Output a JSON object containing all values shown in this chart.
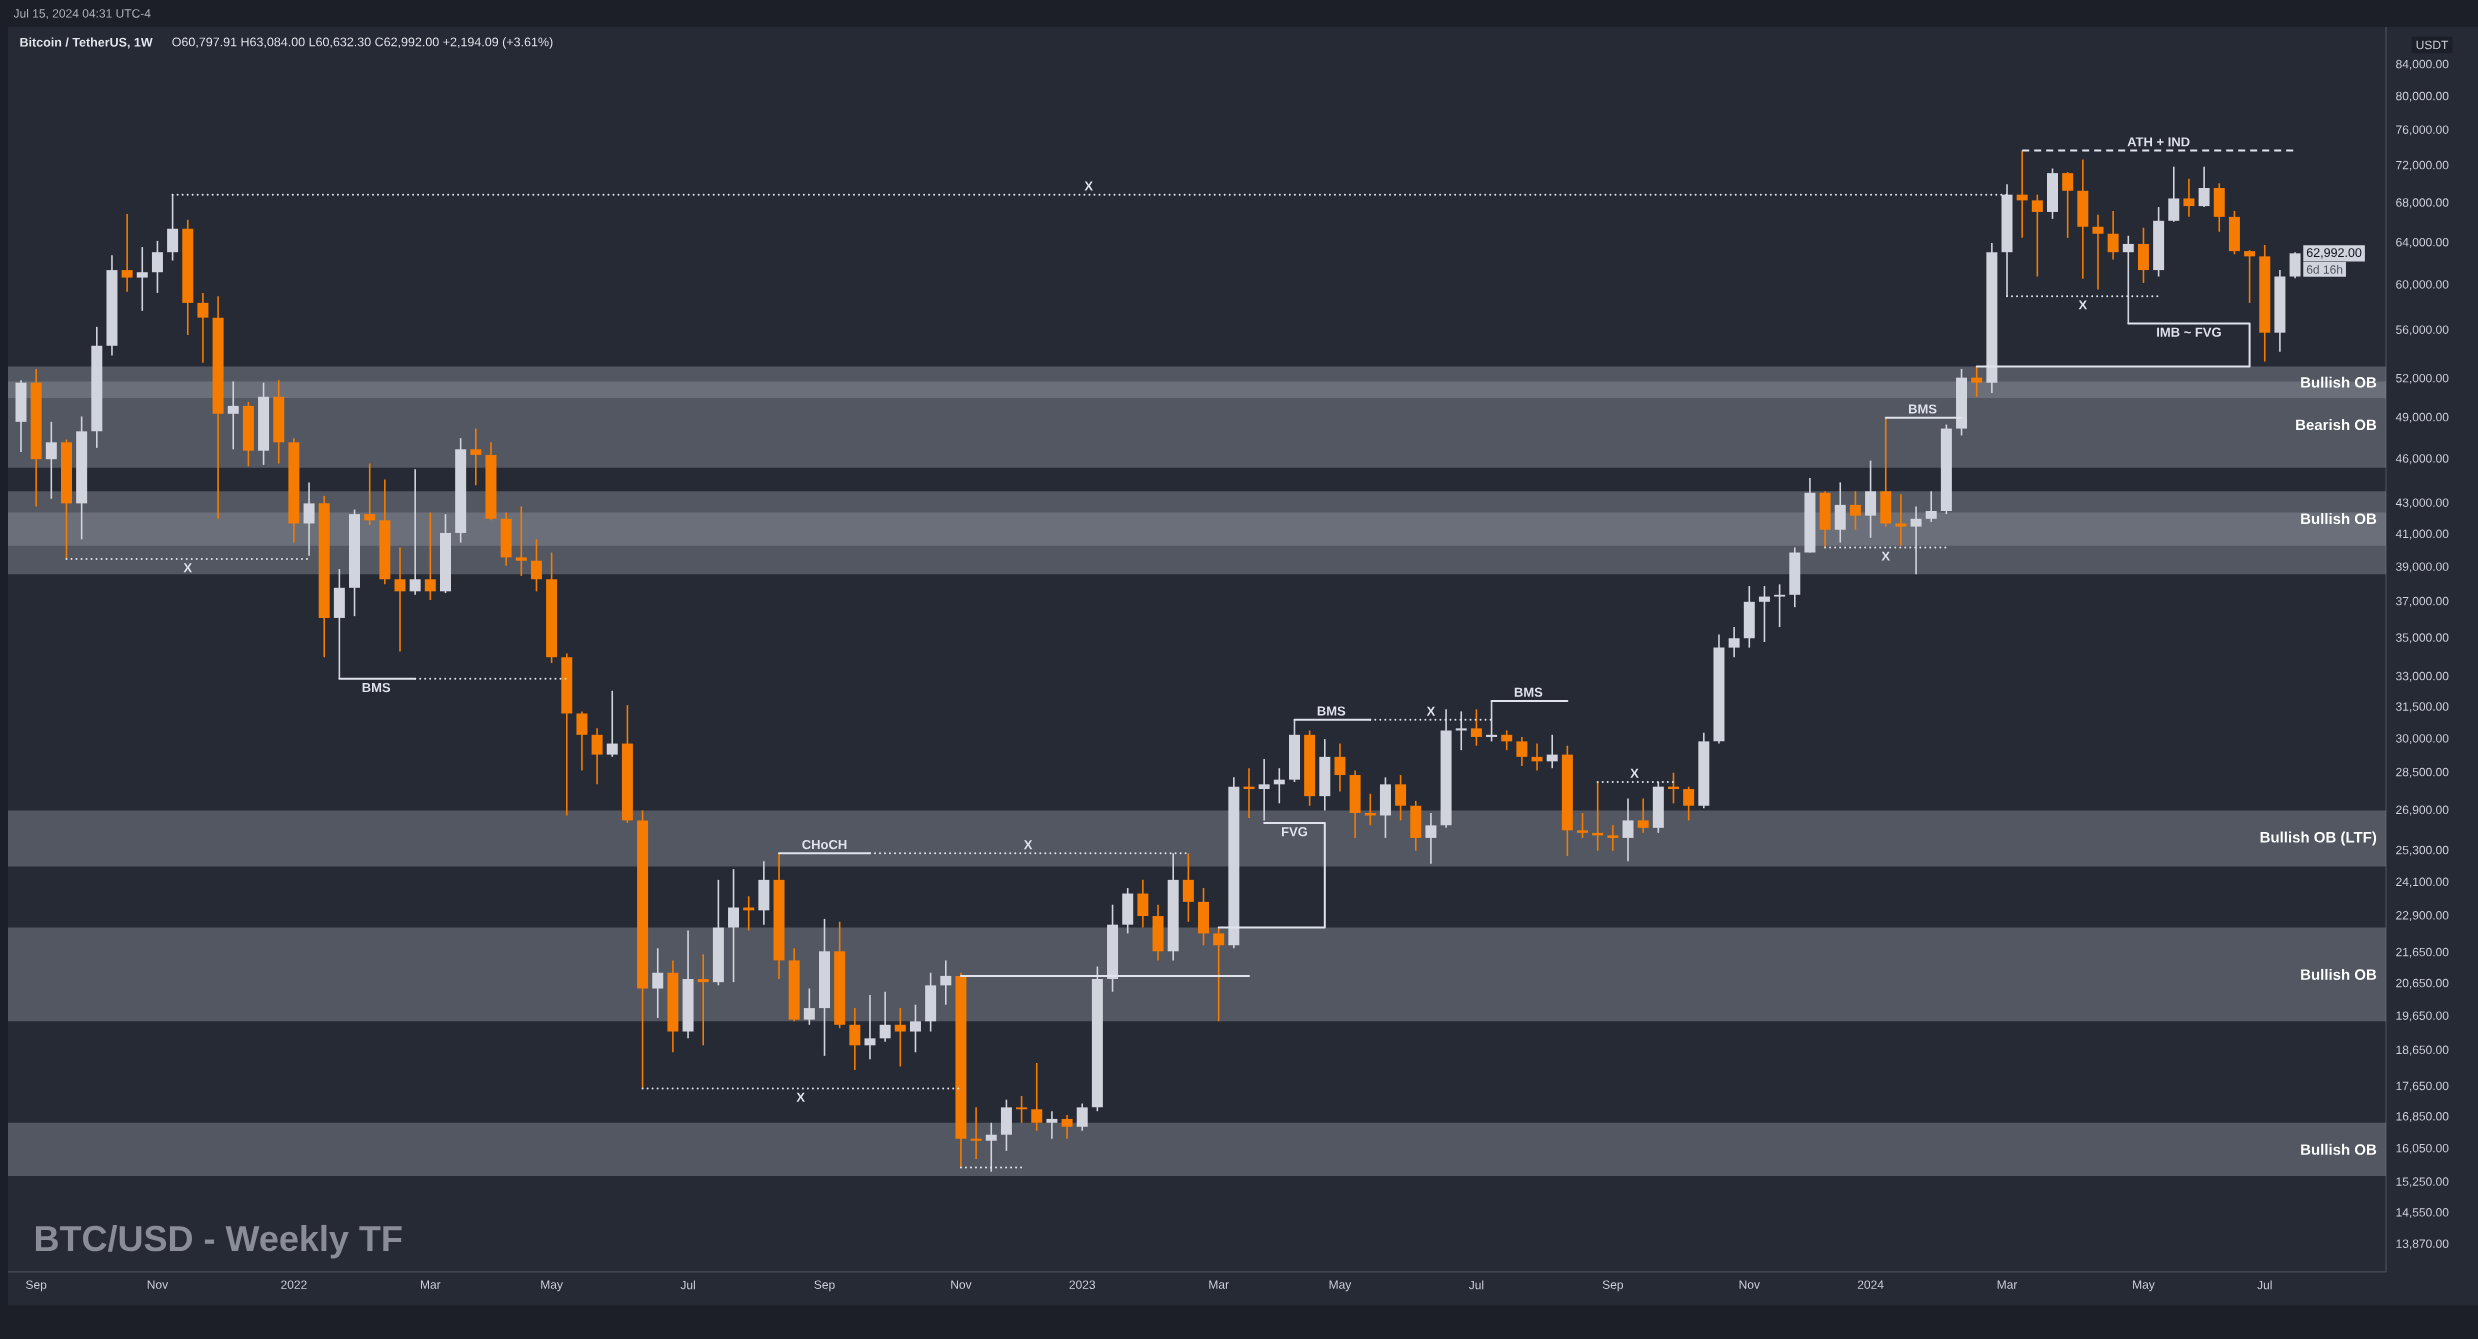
{
  "chart_data": {
    "type": "candlestick",
    "title": "Bitcoin / TetherUS, 1W",
    "subtitle": "O60,797.91 H63,084.00 L60,632.30 C62,992.00 +2,194.09 (+3.61%)",
    "ylabel": "USDT",
    "log": "y",
    "xlim": [
      "2021-08-24",
      "2024-08-26"
    ],
    "ylim": [
      13300,
      89000
    ],
    "xticks": [
      {
        "value": "2021-09-06",
        "label": "Sep"
      },
      {
        "value": "2021-11-01",
        "label": "Nov"
      },
      {
        "value": "2022-01-03",
        "label": "2022"
      },
      {
        "value": "2022-03-07",
        "label": "Mar"
      },
      {
        "value": "2022-05-02",
        "label": "May"
      },
      {
        "value": "2022-07-04",
        "label": "Jul"
      },
      {
        "value": "2022-09-05",
        "label": "Sep"
      },
      {
        "value": "2022-11-07",
        "label": "Nov"
      },
      {
        "value": "2023-01-02",
        "label": "2023"
      },
      {
        "value": "2023-03-06",
        "label": "Mar"
      },
      {
        "value": "2023-05-01",
        "label": "May"
      },
      {
        "value": "2023-07-03",
        "label": "Jul"
      },
      {
        "value": "2023-09-04",
        "label": "Sep"
      },
      {
        "value": "2023-11-06",
        "label": "Nov"
      },
      {
        "value": "2024-01-01",
        "label": "2024"
      },
      {
        "value": "2024-03-04",
        "label": "Mar"
      },
      {
        "value": "2024-05-06",
        "label": "May"
      },
      {
        "value": "2024-07-01",
        "label": "Jul"
      }
    ],
    "yticks": [
      {
        "value": 84000,
        "label": "84,000.00"
      },
      {
        "value": 80000,
        "label": "80,000.00"
      },
      {
        "value": 76000,
        "label": "76,000.00"
      },
      {
        "value": 72000,
        "label": "72,000.00"
      },
      {
        "value": 68000,
        "label": "68,000.00"
      },
      {
        "value": 64000,
        "label": "64,000.00"
      },
      {
        "value": 60000,
        "label": "60,000.00"
      },
      {
        "value": 56000,
        "label": "56,000.00"
      },
      {
        "value": 52000,
        "label": "52,000.00"
      },
      {
        "value": 49000,
        "label": "49,000.00"
      },
      {
        "value": 46000,
        "label": "46,000.00"
      },
      {
        "value": 43000,
        "label": "43,000.00"
      },
      {
        "value": 41000,
        "label": "41,000.00"
      },
      {
        "value": 39000,
        "label": "39,000.00"
      },
      {
        "value": 37000,
        "label": "37,000.00"
      },
      {
        "value": 35000,
        "label": "35,000.00"
      },
      {
        "value": 33000,
        "label": "33,000.00"
      },
      {
        "value": 31500,
        "label": "31,500.00"
      },
      {
        "value": 30000,
        "label": "30,000.00"
      },
      {
        "value": 28500,
        "label": "28,500.00"
      },
      {
        "value": 26900,
        "label": "26,900.00"
      },
      {
        "value": 25300,
        "label": "25,300.00"
      },
      {
        "value": 24100,
        "label": "24,100.00"
      },
      {
        "value": 22900,
        "label": "22,900.00"
      },
      {
        "value": 21650,
        "label": "21,650.00"
      },
      {
        "value": 20650,
        "label": "20,650.00"
      },
      {
        "value": 19650,
        "label": "19,650.00"
      },
      {
        "value": 18650,
        "label": "18,650.00"
      },
      {
        "value": 17650,
        "label": "17,650.00"
      },
      {
        "value": 16850,
        "label": "16,850.00"
      },
      {
        "value": 16050,
        "label": "16,050.00"
      },
      {
        "value": 15250,
        "label": "15,250.00"
      },
      {
        "value": 14550,
        "label": "14,550.00"
      },
      {
        "value": 13870,
        "label": "13,870.00"
      }
    ],
    "series": [
      {
        "x": [
          "2021-08-30",
          "2021-09-06",
          "2021-09-13",
          "2021-09-20",
          "2021-09-27",
          "2021-10-04",
          "2021-10-11",
          "2021-10-18",
          "2021-10-25",
          "2021-11-01",
          "2021-11-08",
          "2021-11-15",
          "2021-11-22",
          "2021-11-29",
          "2021-12-06",
          "2021-12-13",
          "2021-12-20",
          "2021-12-27",
          "2022-01-03",
          "2022-01-10",
          "2022-01-17",
          "2022-01-24",
          "2022-01-31",
          "2022-02-07",
          "2022-02-14",
          "2022-02-21",
          "2022-02-28",
          "2022-03-07",
          "2022-03-14",
          "2022-03-21",
          "2022-03-28",
          "2022-04-04",
          "2022-04-11",
          "2022-04-18",
          "2022-04-25",
          "2022-05-02",
          "2022-05-09",
          "2022-05-16",
          "2022-05-23",
          "2022-05-30",
          "2022-06-06",
          "2022-06-13",
          "2022-06-20",
          "2022-06-27",
          "2022-07-04",
          "2022-07-11",
          "2022-07-18",
          "2022-07-25",
          "2022-08-01",
          "2022-08-08",
          "2022-08-15",
          "2022-08-22",
          "2022-08-29",
          "2022-09-05",
          "2022-09-12",
          "2022-09-19",
          "2022-09-26",
          "2022-10-03",
          "2022-10-10",
          "2022-10-17",
          "2022-10-24",
          "2022-10-31",
          "2022-11-07",
          "2022-11-14",
          "2022-11-21",
          "2022-11-28",
          "2022-12-05",
          "2022-12-12",
          "2022-12-19",
          "2022-12-26",
          "2023-01-02",
          "2023-01-09",
          "2023-01-16",
          "2023-01-23",
          "2023-01-30",
          "2023-02-06",
          "2023-02-13",
          "2023-02-20",
          "2023-02-27",
          "2023-03-06",
          "2023-03-13",
          "2023-03-20",
          "2023-03-27",
          "2023-04-03",
          "2023-04-10",
          "2023-04-17",
          "2023-04-24",
          "2023-05-01",
          "2023-05-08",
          "2023-05-15",
          "2023-05-22",
          "2023-05-29",
          "2023-06-05",
          "2023-06-12",
          "2023-06-19",
          "2023-06-26",
          "2023-07-03",
          "2023-07-10",
          "2023-07-17",
          "2023-07-24",
          "2023-07-31",
          "2023-08-07",
          "2023-08-14",
          "2023-08-21",
          "2023-08-28",
          "2023-09-04",
          "2023-09-11",
          "2023-09-18",
          "2023-09-25",
          "2023-10-02",
          "2023-10-09",
          "2023-10-16",
          "2023-10-23",
          "2023-10-30",
          "2023-11-06",
          "2023-11-13",
          "2023-11-20",
          "2023-11-27",
          "2023-12-04",
          "2023-12-11",
          "2023-12-18",
          "2023-12-25",
          "2024-01-01",
          "2024-01-08",
          "2024-01-15",
          "2024-01-22",
          "2024-01-29",
          "2024-02-05",
          "2024-02-12",
          "2024-02-19",
          "2024-02-26",
          "2024-03-04",
          "2024-03-11",
          "2024-03-18",
          "2024-03-25",
          "2024-04-01",
          "2024-04-08",
          "2024-04-15",
          "2024-04-22",
          "2024-04-29",
          "2024-05-06",
          "2024-05-13",
          "2024-05-20",
          "2024-05-27",
          "2024-06-03",
          "2024-06-10",
          "2024-06-17",
          "2024-06-24",
          "2024-07-01",
          "2024-07-08",
          "2024-07-15"
        ],
        "ohlc": [
          [
            48700,
            51900,
            46500,
            51700
          ],
          [
            51700,
            52800,
            42800,
            46000
          ],
          [
            46000,
            48700,
            43300,
            47200
          ],
          [
            47200,
            47400,
            39500,
            43000
          ],
          [
            43000,
            49100,
            40700,
            48000
          ],
          [
            48000,
            56300,
            46800,
            54700
          ],
          [
            54700,
            62800,
            53900,
            61400
          ],
          [
            61400,
            66900,
            59400,
            60700
          ],
          [
            60700,
            63600,
            57700,
            61200
          ],
          [
            61200,
            64200,
            59300,
            63100
          ],
          [
            63100,
            68900,
            62300,
            65400
          ],
          [
            65400,
            66300,
            55600,
            58400
          ],
          [
            58400,
            59300,
            53300,
            57100
          ],
          [
            57100,
            59000,
            42000,
            49300
          ],
          [
            49300,
            51800,
            46700,
            49900
          ],
          [
            49900,
            50200,
            45500,
            46600
          ],
          [
            46600,
            51700,
            45600,
            50600
          ],
          [
            50600,
            51900,
            45700,
            47200
          ],
          [
            47200,
            47500,
            40500,
            41700
          ],
          [
            41700,
            44400,
            39700,
            43000
          ],
          [
            43000,
            43500,
            34000,
            36100
          ],
          [
            36100,
            38900,
            32900,
            37800
          ],
          [
            37800,
            42600,
            36200,
            42300
          ],
          [
            42300,
            45700,
            41600,
            41900
          ],
          [
            41900,
            44600,
            38000,
            38300
          ],
          [
            38300,
            40200,
            34300,
            37600
          ],
          [
            37600,
            45300,
            37400,
            38300
          ],
          [
            38300,
            42400,
            37100,
            37600
          ],
          [
            37600,
            42300,
            37500,
            41100
          ],
          [
            41100,
            47500,
            40500,
            46700
          ],
          [
            46700,
            48200,
            44200,
            46300
          ],
          [
            46300,
            47200,
            41900,
            42000
          ],
          [
            42000,
            42400,
            39100,
            39600
          ],
          [
            39600,
            42800,
            38500,
            39400
          ],
          [
            39400,
            40700,
            37600,
            38300
          ],
          [
            38300,
            39900,
            33700,
            34000
          ],
          [
            34000,
            34200,
            26700,
            31200
          ],
          [
            31200,
            31300,
            28600,
            30200
          ],
          [
            30200,
            30500,
            28000,
            29300
          ],
          [
            29300,
            32300,
            29200,
            29800
          ],
          [
            29800,
            31600,
            26400,
            26500
          ],
          [
            26500,
            26900,
            17600,
            20500
          ],
          [
            20500,
            21800,
            19600,
            21000
          ],
          [
            21000,
            21400,
            18600,
            19200
          ],
          [
            19200,
            22400,
            19000,
            20800
          ],
          [
            20800,
            21600,
            18800,
            20700
          ],
          [
            20700,
            24200,
            20600,
            22500
          ],
          [
            22500,
            24600,
            20700,
            23200
          ],
          [
            23200,
            23600,
            22400,
            23100
          ],
          [
            23100,
            24900,
            22600,
            24200
          ],
          [
            24200,
            25200,
            20800,
            21400
          ],
          [
            21400,
            21800,
            19500,
            19550
          ],
          [
            19550,
            20500,
            19400,
            19900
          ],
          [
            19900,
            22800,
            18500,
            21700
          ],
          [
            21700,
            22700,
            19300,
            19400
          ],
          [
            19400,
            19900,
            18100,
            18800
          ],
          [
            18800,
            20300,
            18400,
            19000
          ],
          [
            19000,
            20400,
            18900,
            19400
          ],
          [
            19400,
            19900,
            18200,
            19200
          ],
          [
            19200,
            20000,
            18600,
            19500
          ],
          [
            19500,
            21000,
            19200,
            20600
          ],
          [
            20600,
            21400,
            20000,
            20900
          ],
          [
            20900,
            21000,
            15600,
            16300
          ],
          [
            16300,
            17100,
            15800,
            16250
          ],
          [
            16250,
            16700,
            15500,
            16400
          ],
          [
            16400,
            17300,
            16000,
            17100
          ],
          [
            17100,
            17400,
            16700,
            17050
          ],
          [
            17050,
            18300,
            16500,
            16700
          ],
          [
            16700,
            17000,
            16300,
            16800
          ],
          [
            16800,
            16900,
            16300,
            16600
          ],
          [
            16600,
            17200,
            16500,
            17100
          ],
          [
            17100,
            21200,
            17000,
            20800
          ],
          [
            20800,
            23300,
            20400,
            22600
          ],
          [
            22600,
            23900,
            22300,
            23700
          ],
          [
            23700,
            24200,
            22500,
            22900
          ],
          [
            22900,
            23300,
            21400,
            21700
          ],
          [
            21700,
            25200,
            21400,
            24200
          ],
          [
            24200,
            25200,
            22700,
            23400
          ],
          [
            23400,
            23900,
            21900,
            22300
          ],
          [
            22300,
            22500,
            19500,
            21900
          ],
          [
            21900,
            28300,
            21800,
            27900
          ],
          [
            27900,
            28700,
            26600,
            27800
          ],
          [
            27800,
            29100,
            26500,
            28000
          ],
          [
            28000,
            28700,
            27200,
            28200
          ],
          [
            28200,
            30900,
            28100,
            30200
          ],
          [
            30200,
            30400,
            27100,
            27500
          ],
          [
            27500,
            30000,
            26900,
            29200
          ],
          [
            29200,
            29800,
            27700,
            28400
          ],
          [
            28400,
            28600,
            25800,
            26800
          ],
          [
            26800,
            27600,
            26300,
            26700
          ],
          [
            26700,
            28300,
            25800,
            28000
          ],
          [
            28000,
            28400,
            26500,
            27100
          ],
          [
            27100,
            27300,
            25300,
            25800
          ],
          [
            25800,
            26800,
            24800,
            26300
          ],
          [
            26300,
            31400,
            26200,
            30400
          ],
          [
            30400,
            31300,
            29500,
            30500
          ],
          [
            30500,
            31400,
            29700,
            30100
          ],
          [
            30100,
            31800,
            29900,
            30200
          ],
          [
            30200,
            30400,
            29500,
            29900
          ],
          [
            29900,
            30100,
            28800,
            29200
          ],
          [
            29200,
            29800,
            28600,
            29000
          ],
          [
            29000,
            30200,
            28700,
            29300
          ],
          [
            29300,
            29700,
            25100,
            26100
          ],
          [
            26100,
            26800,
            25800,
            26000
          ],
          [
            26000,
            28100,
            25300,
            25900
          ],
          [
            25900,
            26300,
            25300,
            25800
          ],
          [
            25800,
            27400,
            24900,
            26500
          ],
          [
            26500,
            27400,
            26000,
            26200
          ],
          [
            26200,
            28100,
            26000,
            27900
          ],
          [
            27900,
            28500,
            27200,
            27800
          ],
          [
            27800,
            27900,
            26500,
            27100
          ],
          [
            27100,
            30300,
            27000,
            29900
          ],
          [
            29900,
            35200,
            29800,
            34500
          ],
          [
            34500,
            35600,
            34000,
            35000
          ],
          [
            35000,
            37900,
            34500,
            37000
          ],
          [
            37000,
            37900,
            34800,
            37300
          ],
          [
            37300,
            38000,
            35600,
            37400
          ],
          [
            37400,
            40200,
            36700,
            39900
          ],
          [
            39900,
            44700,
            39900,
            43700
          ],
          [
            43700,
            43800,
            40200,
            41300
          ],
          [
            41300,
            44400,
            40500,
            42900
          ],
          [
            42900,
            43800,
            41300,
            42200
          ],
          [
            42200,
            45900,
            40800,
            43800
          ],
          [
            43800,
            49000,
            41500,
            41700
          ],
          [
            41700,
            43600,
            40300,
            41500
          ],
          [
            41500,
            42800,
            38600,
            42000
          ],
          [
            42000,
            43800,
            41800,
            42500
          ],
          [
            42500,
            48500,
            42300,
            48200
          ],
          [
            48200,
            52800,
            47700,
            52100
          ],
          [
            52100,
            53000,
            50600,
            51700
          ],
          [
            51700,
            64000,
            50900,
            63100
          ],
          [
            63100,
            70000,
            59000,
            68900
          ],
          [
            68900,
            73700,
            64500,
            68300
          ],
          [
            68300,
            68900,
            60800,
            67100
          ],
          [
            67100,
            71700,
            66400,
            71200
          ],
          [
            71200,
            71300,
            64500,
            69300
          ],
          [
            69300,
            72700,
            60600,
            65600
          ],
          [
            65600,
            66800,
            59600,
            64900
          ],
          [
            64900,
            67200,
            62400,
            63100
          ],
          [
            63100,
            64700,
            56600,
            63900
          ],
          [
            63900,
            65500,
            60200,
            61400
          ],
          [
            61400,
            67600,
            60800,
            66200
          ],
          [
            66200,
            71900,
            66100,
            68500
          ],
          [
            68500,
            70600,
            66600,
            67700
          ],
          [
            67700,
            71900,
            67600,
            69600
          ],
          [
            69600,
            70100,
            65100,
            66600
          ],
          [
            66600,
            67200,
            62900,
            63200
          ],
          [
            63200,
            63300,
            58400,
            62700
          ],
          [
            62700,
            63800,
            53400,
            55800
          ],
          [
            55800,
            61400,
            54200,
            60800
          ],
          [
            60797.91,
            63084.0,
            60632.3,
            62992.0
          ]
        ],
        "colors": [
          "#d1d4dc",
          "#f57c00",
          "#d1d4dc",
          "#f57c00",
          "#d1d4dc",
          "#d1d4dc",
          "#d1d4dc",
          "#f57c00",
          "#d1d4dc",
          "#d1d4dc",
          "#d1d4dc",
          "#f57c00",
          "#f57c00",
          "#f57c00",
          "#d1d4dc",
          "#f57c00",
          "#d1d4dc",
          "#f57c00",
          "#f57c00",
          "#d1d4dc",
          "#f57c00",
          "#d1d4dc",
          "#d1d4dc",
          "#f57c00",
          "#f57c00",
          "#f57c00",
          "#d1d4dc",
          "#f57c00",
          "#d1d4dc",
          "#d1d4dc",
          "#f57c00",
          "#f57c00",
          "#f57c00",
          "#f57c00",
          "#f57c00",
          "#f57c00",
          "#f57c00",
          "#f57c00",
          "#f57c00",
          "#d1d4dc",
          "#f57c00",
          "#f57c00",
          "#d1d4dc",
          "#f57c00",
          "#d1d4dc",
          "#f57c00",
          "#d1d4dc",
          "#d1d4dc",
          "#f57c00",
          "#d1d4dc",
          "#f57c00",
          "#f57c00",
          "#d1d4dc",
          "#d1d4dc",
          "#f57c00",
          "#f57c00",
          "#d1d4dc",
          "#d1d4dc",
          "#f57c00",
          "#d1d4dc",
          "#d1d4dc",
          "#d1d4dc",
          "#f57c00",
          "#f57c00",
          "#d1d4dc",
          "#d1d4dc",
          "#f57c00",
          "#f57c00",
          "#d1d4dc",
          "#f57c00",
          "#d1d4dc",
          "#d1d4dc",
          "#d1d4dc",
          "#d1d4dc",
          "#f57c00",
          "#f57c00",
          "#d1d4dc",
          "#f57c00",
          "#f57c00",
          "#f57c00",
          "#d1d4dc",
          "#f57c00",
          "#d1d4dc",
          "#d1d4dc",
          "#d1d4dc",
          "#f57c00",
          "#d1d4dc",
          "#f57c00",
          "#f57c00",
          "#f57c00",
          "#d1d4dc",
          "#f57c00",
          "#f57c00",
          "#d1d4dc",
          "#d1d4dc",
          "#d1d4dc",
          "#f57c00",
          "#d1d4dc",
          "#f57c00",
          "#f57c00",
          "#f57c00",
          "#d1d4dc",
          "#f57c00",
          "#f57c00",
          "#f57c00",
          "#f57c00",
          "#d1d4dc",
          "#f57c00",
          "#d1d4dc",
          "#f57c00",
          "#f57c00",
          "#d1d4dc",
          "#d1d4dc",
          "#d1d4dc",
          "#d1d4dc",
          "#d1d4dc",
          "#d1d4dc",
          "#d1d4dc",
          "#d1d4dc",
          "#f57c00",
          "#d1d4dc",
          "#f57c00",
          "#d1d4dc",
          "#f57c00",
          "#f57c00",
          "#d1d4dc",
          "#d1d4dc",
          "#d1d4dc",
          "#d1d4dc",
          "#f57c00",
          "#d1d4dc",
          "#d1d4dc",
          "#f57c00",
          "#f57c00",
          "#d1d4dc",
          "#f57c00",
          "#f57c00",
          "#f57c00",
          "#f57c00",
          "#d1d4dc",
          "#f57c00",
          "#d1d4dc",
          "#d1d4dc",
          "#f57c00",
          "#d1d4dc",
          "#f57c00",
          "#f57c00",
          "#f57c00",
          "#f57c00",
          "#d1d4dc",
          "#d1d4dc"
        ]
      },
      {
        "type": "line",
        "name": "X",
        "x": [
          "2021-11-08",
          "2024-03-04"
        ],
        "values": [
          68900,
          68900
        ],
        "color": "#e0e3eb",
        "line_style": "dotted"
      },
      {
        "type": "line",
        "name": "X",
        "x": [
          "2021-09-20",
          "2022-01-10"
        ],
        "values": [
          39500,
          39500
        ],
        "color": "#e0e3eb",
        "line_style": "dotted"
      },
      {
        "type": "line",
        "name": "BMS",
        "x": [
          "2022-01-24",
          "2022-02-28"
        ],
        "values": [
          32900,
          32900
        ],
        "color": "#e0e3eb",
        "line_style": "solid"
      },
      {
        "type": "line",
        "x": [
          "2022-02-28",
          "2022-05-09"
        ],
        "values": [
          32900,
          32900
        ],
        "color": "#e0e3eb",
        "line_style": "dotted"
      },
      {
        "type": "line",
        "name": "X",
        "x": [
          "2022-06-13",
          "2022-11-07"
        ],
        "values": [
          17600,
          17600
        ],
        "color": "#e0e3eb",
        "line_style": "dotted"
      },
      {
        "type": "line",
        "name": "CHoCH",
        "x": [
          "2022-08-15",
          "2022-09-26"
        ],
        "values": [
          25200,
          25200
        ],
        "color": "#e0e3eb",
        "line_style": "solid"
      },
      {
        "type": "line",
        "name": "X",
        "x": [
          "2022-09-26",
          "2023-02-20"
        ],
        "values": [
          25200,
          25200
        ],
        "color": "#e0e3eb",
        "line_style": "dotted"
      },
      {
        "type": "line",
        "x": [
          "2022-11-07",
          "2023-03-20"
        ],
        "values": [
          20900,
          20900
        ],
        "color": "#e0e3eb",
        "line_style": "solid"
      },
      {
        "type": "line",
        "x": [
          "2022-11-07",
          "2022-12-05"
        ],
        "values": [
          15600,
          15600
        ],
        "color": "#e0e3eb",
        "line_style": "dotted"
      },
      {
        "type": "line",
        "name": "FVG",
        "x": [
          "2023-03-27",
          "2023-04-24",
          "2023-04-24",
          "2023-03-06"
        ],
        "values": [
          26400,
          26400,
          22500,
          22500
        ],
        "color": "#e0e3eb",
        "line_style": "solid"
      },
      {
        "type": "line",
        "name": "BMS",
        "x": [
          "2023-04-10",
          "2023-05-15"
        ],
        "values": [
          30900,
          30900
        ],
        "color": "#e0e3eb",
        "line_style": "solid"
      },
      {
        "type": "line",
        "name": "X",
        "x": [
          "2023-05-15",
          "2023-07-10"
        ],
        "values": [
          30900,
          30900
        ],
        "color": "#e0e3eb",
        "line_style": "dotted"
      },
      {
        "type": "line",
        "name": "BMS",
        "x": [
          "2023-07-10",
          "2023-08-14"
        ],
        "values": [
          31800,
          31800
        ],
        "color": "#e0e3eb",
        "line_style": "solid"
      },
      {
        "type": "line",
        "name": "X",
        "x": [
          "2023-08-28",
          "2023-10-02"
        ],
        "values": [
          28100,
          28100
        ],
        "color": "#e0e3eb",
        "line_style": "dotted"
      },
      {
        "type": "line",
        "name": "X",
        "x": [
          "2023-12-11",
          "2024-02-05"
        ],
        "values": [
          40200,
          40200
        ],
        "color": "#e0e3eb",
        "line_style": "dotted"
      },
      {
        "type": "line",
        "name": "BMS",
        "x": [
          "2024-01-08",
          "2024-02-12"
        ],
        "values": [
          49000,
          49000
        ],
        "color": "#e0e3eb",
        "line_style": "solid"
      },
      {
        "type": "line",
        "name": "X",
        "x": [
          "2024-03-04",
          "2024-05-13"
        ],
        "values": [
          59000,
          59000
        ],
        "color": "#e0e3eb",
        "line_style": "dotted"
      },
      {
        "type": "line",
        "name": "IMB ~ FVG",
        "x": [
          "2024-04-29",
          "2024-06-24",
          "2024-06-24",
          "2024-02-19"
        ],
        "values": [
          56600,
          56600,
          53000,
          53000
        ],
        "color": "#e0e3eb",
        "line_style": "solid"
      },
      {
        "type": "line",
        "name": "ATH + IND",
        "x": [
          "2024-03-11",
          "2024-07-15"
        ],
        "values": [
          73700,
          73700
        ],
        "color": "#e0e3eb",
        "line_style": "dashed"
      }
    ],
    "bands": [
      {
        "axis": "y",
        "from": 45400,
        "to": 51800,
        "color": "#8a8d96",
        "label": "Bearish OB"
      },
      {
        "axis": "y",
        "from": 15400,
        "to": 16700,
        "color": "#8a8d96",
        "label": "Bullish OB"
      },
      {
        "axis": "y",
        "from": 19500,
        "to": 22500,
        "color": "#8a8d96",
        "label": "Bullish OB"
      },
      {
        "axis": "y",
        "from": 24700,
        "to": 26900,
        "color": "#8a8d96",
        "label": "Bullish OB (LTF)"
      },
      {
        "axis": "y",
        "from": 40300,
        "to": 43800,
        "color": "#8a8d96",
        "label": "Bullish OB"
      },
      {
        "axis": "y",
        "from": 38600,
        "to": 42400,
        "color": "#8a8d96"
      },
      {
        "axis": "y",
        "from": 50500,
        "to": 53000,
        "color": "#8a8d96",
        "label": "Bullish OB"
      }
    ],
    "annotations": [
      {
        "text": "62,992.00",
        "x": "2024-07-15",
        "y": 62992.0
      },
      "BTC/USD - Weekly TF",
      "Jul 15, 2024 04:31 UTC-4",
      "6d 16h"
    ]
  }
}
